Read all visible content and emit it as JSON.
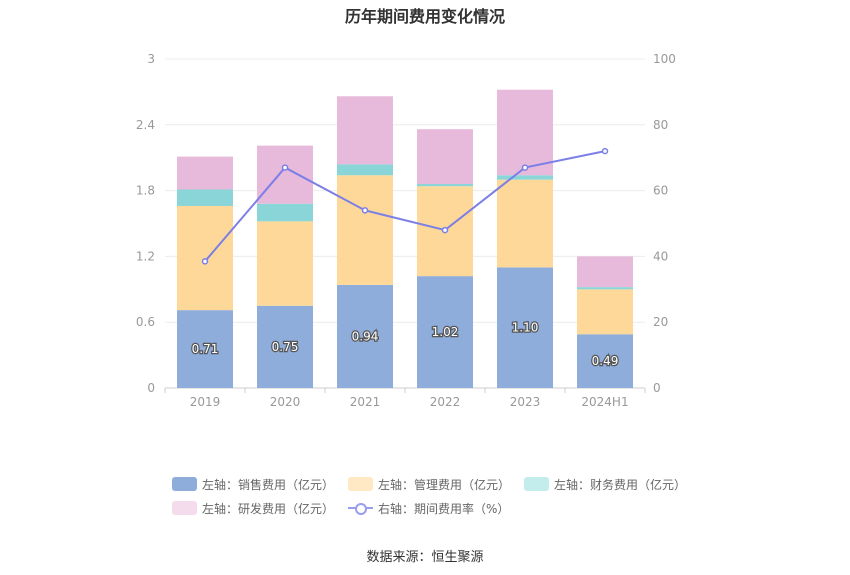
{
  "chart_data": {
    "type": "bar",
    "title": "历年期间费用变化情况",
    "categories": [
      "2019",
      "2020",
      "2021",
      "2022",
      "2023",
      "2024H1"
    ],
    "y_left": {
      "min": 0,
      "max": 3,
      "ticks": [
        "0",
        "0.6",
        "1.2",
        "1.8",
        "2.4",
        "3"
      ]
    },
    "y_right": {
      "min": 0,
      "max": 100,
      "ticks": [
        "0",
        "20",
        "40",
        "60",
        "80",
        "100"
      ]
    },
    "stacked": true,
    "grid": true,
    "legend_position": "bottom",
    "series": [
      {
        "name": "左轴：销售费用（亿元）",
        "axis": "left",
        "type": "bar",
        "color": "#8eaddb",
        "values": [
          0.71,
          0.75,
          0.94,
          1.02,
          1.1,
          0.49
        ],
        "labels": [
          "0.71",
          "0.75",
          "0.94",
          "1.02",
          "1.10",
          "0.49"
        ]
      },
      {
        "name": "左轴：管理费用（亿元）",
        "axis": "left",
        "type": "bar",
        "color": "#fed898",
        "values": [
          0.95,
          0.77,
          1.0,
          0.82,
          0.8,
          0.41
        ]
      },
      {
        "name": "左轴：财务费用（亿元）",
        "axis": "left",
        "type": "bar",
        "color": "#89d5d8",
        "values": [
          0.15,
          0.16,
          0.1,
          0.02,
          0.04,
          0.02
        ]
      },
      {
        "name": "左轴：研发费用（亿元）",
        "axis": "left",
        "type": "bar",
        "color": "#e7b9da",
        "values": [
          0.3,
          0.53,
          0.62,
          0.5,
          0.78,
          0.28
        ]
      },
      {
        "name": "右轴：期间费用率（%）",
        "axis": "right",
        "type": "line",
        "color": "#7b7fe6",
        "values": [
          38.5,
          67,
          54,
          48,
          67,
          72
        ]
      }
    ],
    "source": "数据来源：恒生聚源"
  }
}
